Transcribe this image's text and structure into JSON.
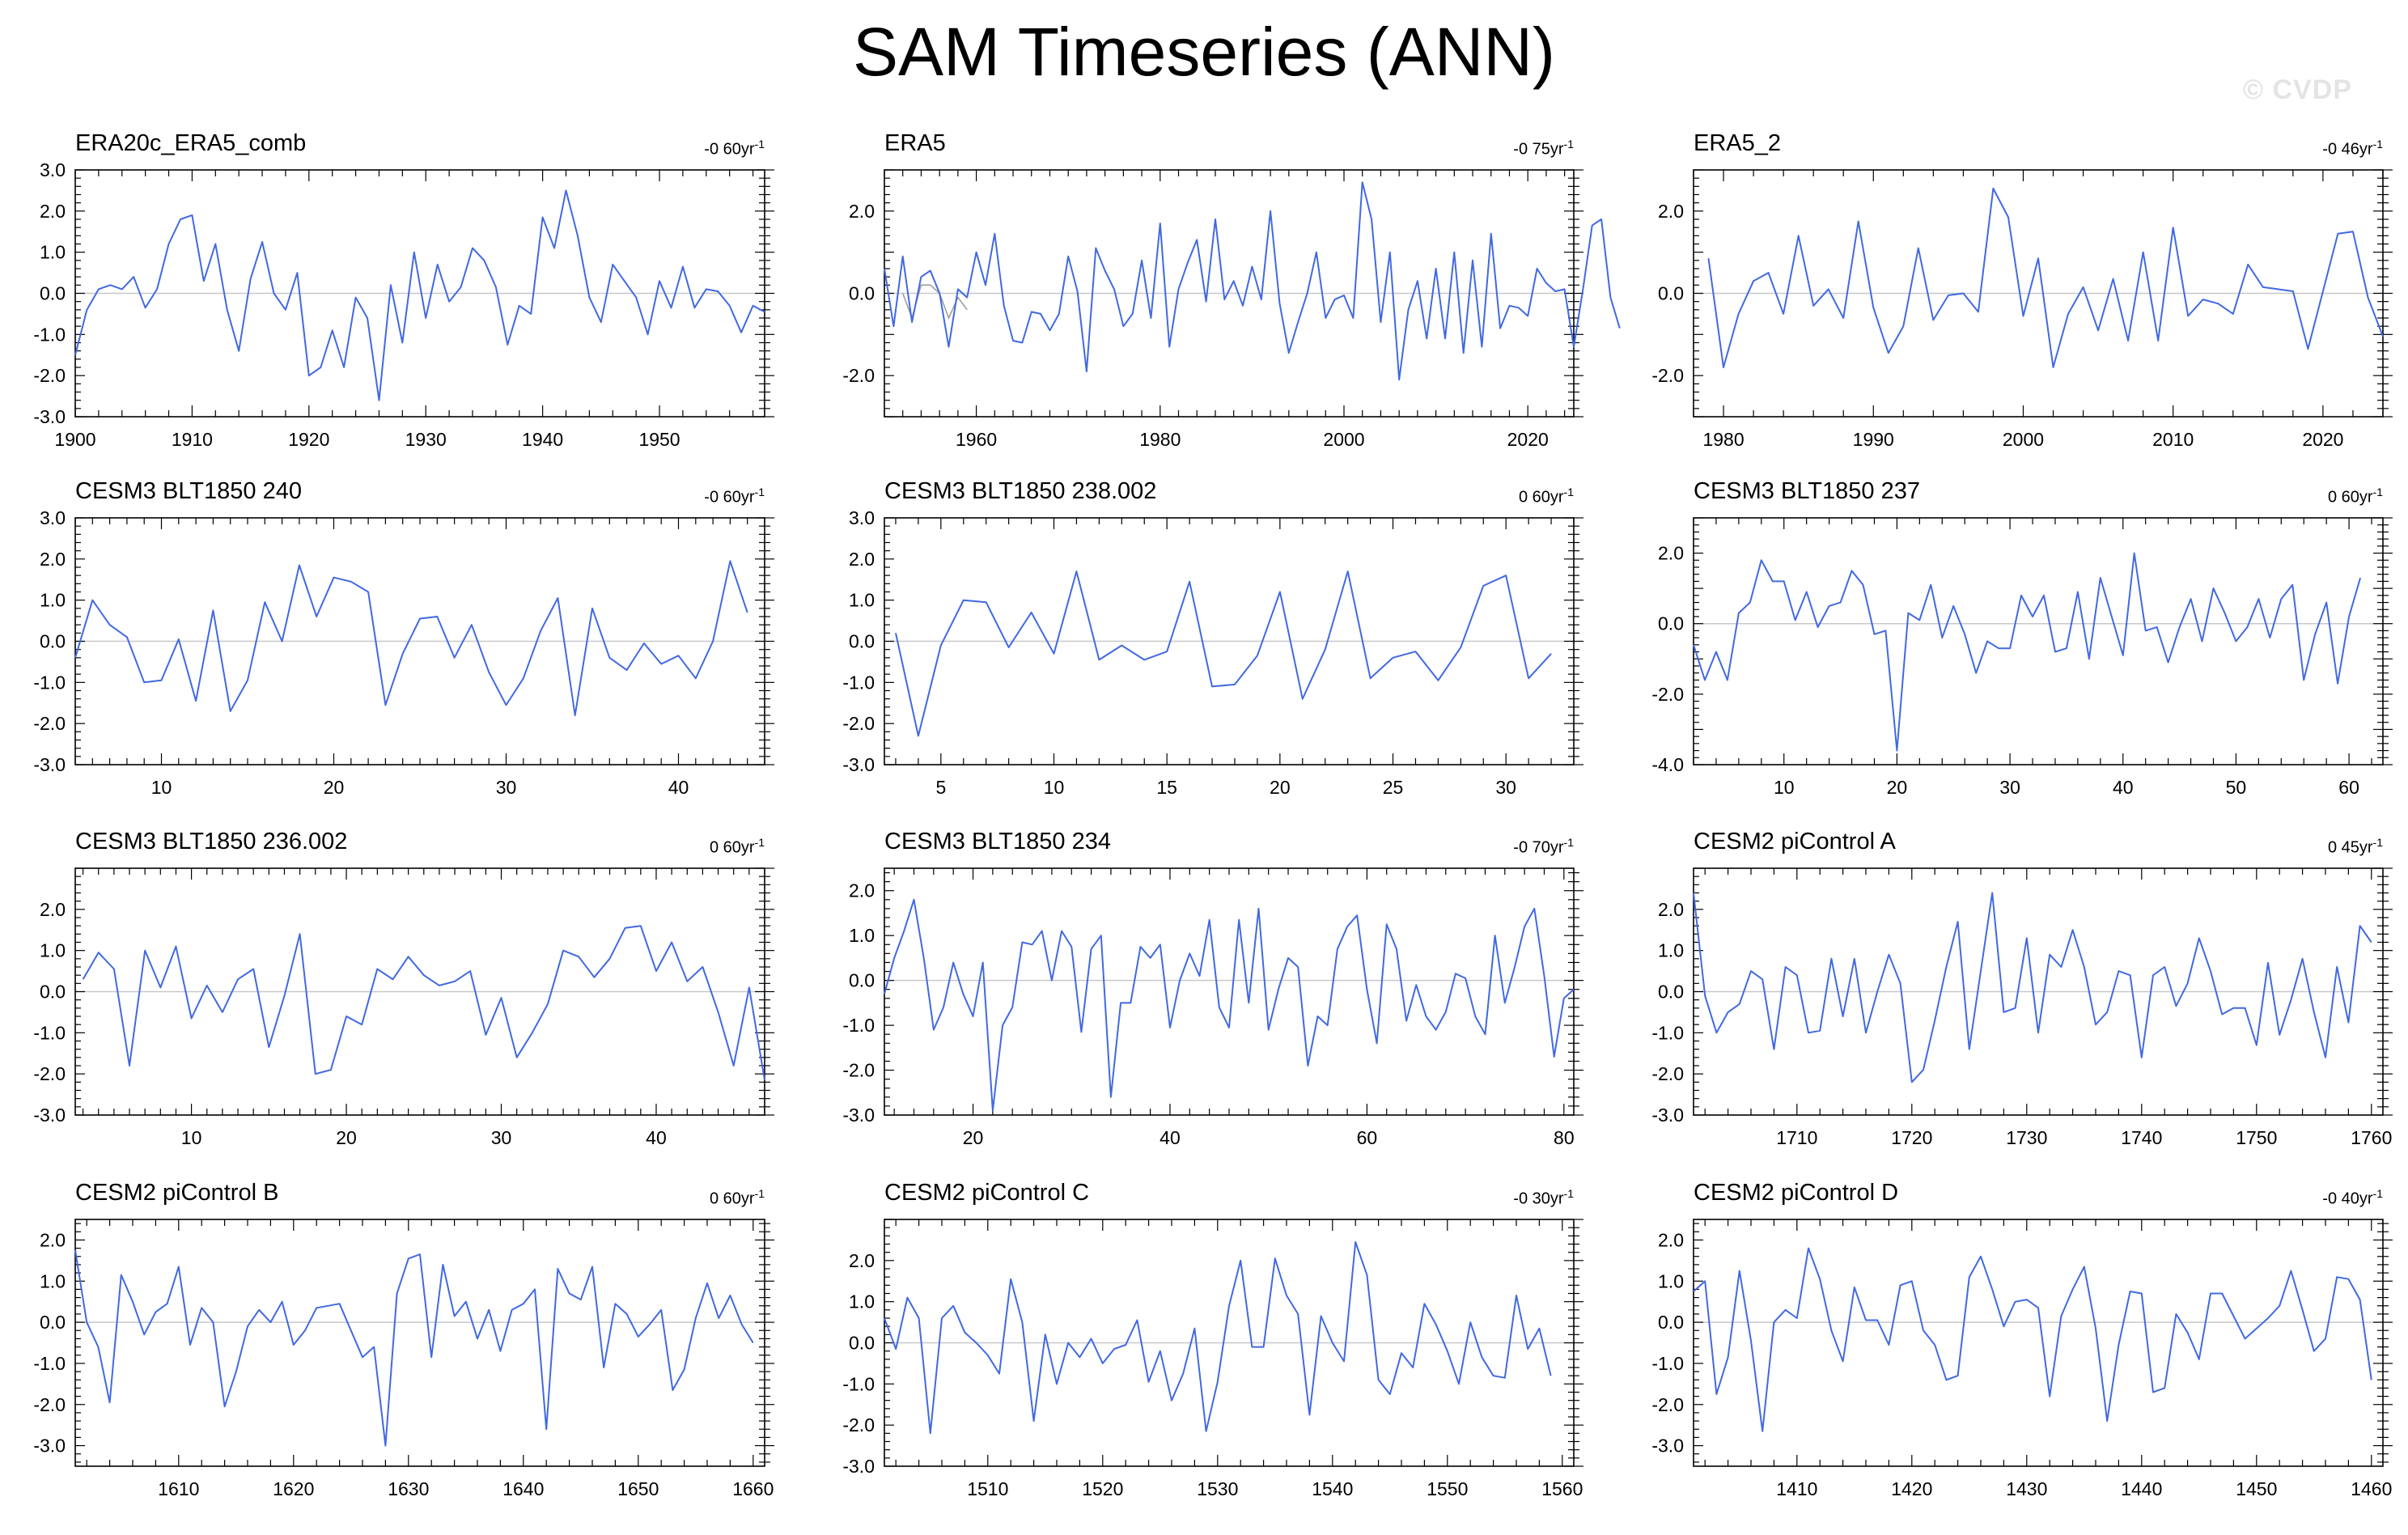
{
  "title": "SAM Timeseries (ANN)",
  "watermark": "© CVDP",
  "colors": {
    "line": "#4169e1",
    "zero": "#c8c8c8",
    "axis": "#000000",
    "extra": "#999999"
  },
  "chart_data": [
    {
      "type": "line",
      "title": "ERA20c_ERA5_comb",
      "trend": "-0 60yr",
      "trend_sup": "-1",
      "xlim": [
        1900,
        1959
      ],
      "ylim": [
        -3.0,
        3.0
      ],
      "xticks": [
        1900,
        1910,
        1920,
        1930,
        1940,
        1950
      ],
      "yticks": [
        "3.0",
        "2.0",
        "1.0",
        "0.0",
        "-1.0",
        "-2.0",
        "-3.0"
      ],
      "x_start": 1900,
      "values": [
        -1.5,
        -0.4,
        0.1,
        0.2,
        0.1,
        0.4,
        -0.35,
        0.1,
        1.2,
        1.8,
        1.9,
        0.3,
        1.2,
        -0.4,
        -1.4,
        0.35,
        1.25,
        0.0,
        -0.4,
        0.5,
        -2.0,
        -1.8,
        -0.9,
        -1.8,
        -0.1,
        -0.6,
        -2.6,
        0.2,
        -1.2,
        1.0,
        -0.6,
        0.7,
        -0.2,
        0.15,
        1.1,
        0.8,
        0.15,
        -1.25,
        -0.3,
        -0.5,
        1.85,
        1.1,
        2.5,
        1.4,
        -0.1,
        -0.7,
        0.7,
        0.3,
        -0.1,
        -1.0,
        0.3,
        -0.35,
        0.65,
        -0.35,
        0.1,
        0.05,
        -0.3,
        -0.95,
        -0.3,
        -0.45
      ]
    },
    {
      "type": "line",
      "title": "ERA5",
      "trend": "-0 75yr",
      "trend_sup": "-1",
      "xlim": [
        1950,
        2025
      ],
      "ylim": [
        -3.0,
        3.0
      ],
      "xticks": [
        1960,
        1980,
        2000,
        2020
      ],
      "yticks": [
        "2.0",
        "0.0",
        "-2.0"
      ],
      "x_start": 1950,
      "values": [
        0.6,
        -0.8,
        0.9,
        -0.7,
        0.4,
        0.55,
        0.0,
        -1.3,
        0.1,
        -0.1,
        1.0,
        0.2,
        1.45,
        -0.3,
        -1.15,
        -1.2,
        -0.45,
        -0.5,
        -0.9,
        -0.5,
        0.9,
        0.05,
        -1.9,
        1.1,
        0.55,
        0.1,
        -0.8,
        -0.5,
        0.8,
        -0.6,
        1.7,
        -1.3,
        0.1,
        0.75,
        1.3,
        -0.2,
        1.8,
        -0.15,
        0.3,
        -0.3,
        0.65,
        -0.15,
        2.0,
        -0.25,
        -1.45,
        -0.7,
        0.0,
        1.0,
        -0.6,
        -0.15,
        -0.05,
        -0.6,
        2.7,
        1.8,
        -0.7,
        1.0,
        -2.1,
        -0.4,
        0.3,
        -1.1,
        0.6,
        -1.1,
        1.0,
        -1.45,
        0.8,
        -1.3,
        1.45,
        -0.85,
        -0.3,
        -0.35,
        -0.55,
        0.6,
        0.25,
        0.05,
        0.1,
        -1.3,
        0.1,
        1.65,
        1.8,
        -0.1,
        -0.85
      ]
    },
    {
      "type": "line",
      "title": "ERA5_2",
      "trend": "-0 46yr",
      "trend_sup": "-1",
      "xlim": [
        1978,
        2024
      ],
      "ylim": [
        -3.0,
        3.0
      ],
      "xticks": [
        1980,
        1990,
        2000,
        2010,
        2020
      ],
      "yticks": [
        "2.0",
        "0.0",
        "-2.0"
      ],
      "x_start": 1979,
      "values": [
        0.85,
        -1.8,
        -0.5,
        0.3,
        0.5,
        -0.5,
        1.4,
        -0.3,
        0.1,
        -0.6,
        1.75,
        -0.35,
        -1.45,
        -0.8,
        1.1,
        -0.65,
        -0.05,
        0.0,
        -0.45,
        2.55,
        1.85,
        -0.55,
        0.85,
        -1.8,
        -0.5,
        0.15,
        -0.9,
        0.35,
        -1.15,
        1.0,
        -1.15,
        1.6,
        -0.55,
        -0.15,
        -0.25,
        -0.5,
        0.7,
        0.15,
        0.1,
        0.05,
        -1.35,
        0.05,
        1.45,
        1.5,
        -0.1,
        -1.05
      ]
    },
    {
      "type": "line",
      "title": "CESM3 BLT1850 240",
      "trend": "-0 60yr",
      "trend_sup": "-1",
      "xlim": [
        5,
        45
      ],
      "ylim": [
        -3.0,
        3.0
      ],
      "xticks": [
        10,
        20,
        30,
        40
      ],
      "yticks": [
        "3.0",
        "2.0",
        "1.0",
        "0.0",
        "-1.0",
        "-2.0",
        "-3.0"
      ],
      "x_start": 5,
      "values": [
        -0.4,
        1.0,
        0.4,
        0.1,
        -1.0,
        -0.95,
        0.05,
        -1.45,
        0.75,
        -1.7,
        -0.95,
        0.95,
        0.0,
        1.85,
        0.6,
        1.55,
        1.45,
        1.2,
        -1.55,
        -0.3,
        0.55,
        0.6,
        -0.4,
        0.4,
        -0.75,
        -1.55,
        -0.9,
        0.25,
        1.05,
        -1.8,
        0.8,
        -0.4,
        -0.7,
        -0.05,
        -0.55,
        -0.35,
        -0.9,
        0.0,
        1.95,
        0.7
      ]
    },
    {
      "type": "line",
      "title": "CESM3 BLT1850 238.002",
      "trend": "0 60yr",
      "trend_sup": "-1",
      "xlim": [
        2.5,
        33
      ],
      "ylim": [
        -3.0,
        3.0
      ],
      "xticks": [
        5,
        10,
        15,
        20,
        25,
        30
      ],
      "yticks": [
        "3.0",
        "2.0",
        "1.0",
        "0.0",
        "-1.0",
        "-2.0",
        "-3.0"
      ],
      "x_start": 3,
      "values": [
        0.2,
        -2.3,
        -0.1,
        1.0,
        0.95,
        -0.15,
        0.7,
        -0.3,
        1.7,
        -0.45,
        -0.1,
        -0.45,
        -0.25,
        1.45,
        -1.1,
        -1.05,
        -0.35,
        1.2,
        -1.4,
        -0.2,
        1.7,
        -0.9,
        -0.4,
        -0.25,
        -0.95,
        -0.15,
        1.35,
        1.6,
        -0.9,
        -0.3
      ]
    },
    {
      "type": "line",
      "title": "CESM3 BLT1850 237",
      "trend": "0 60yr",
      "trend_sup": "-1",
      "xlim": [
        2,
        63
      ],
      "ylim": [
        -4.0,
        3.0
      ],
      "xticks": [
        10,
        20,
        30,
        40,
        50,
        60
      ],
      "yticks": [
        "2.0",
        "0.0",
        "-2.0",
        "-4.0"
      ],
      "x_start": 2,
      "values": [
        -0.6,
        -1.6,
        -0.8,
        -1.6,
        0.3,
        0.6,
        1.8,
        1.2,
        1.2,
        0.1,
        0.9,
        -0.1,
        0.5,
        0.6,
        1.5,
        1.1,
        -0.3,
        -0.2,
        -3.6,
        0.3,
        0.1,
        1.1,
        -0.4,
        0.5,
        -0.3,
        -1.4,
        -0.5,
        -0.7,
        -0.7,
        0.8,
        0.2,
        0.8,
        -0.8,
        -0.7,
        0.9,
        -1.0,
        1.3,
        0.2,
        -0.9,
        2.0,
        -0.2,
        -0.1,
        -1.1,
        -0.1,
        0.7,
        -0.5,
        1.0,
        0.3,
        -0.5,
        -0.1,
        0.7,
        -0.4,
        0.7,
        1.1,
        -1.6,
        -0.3,
        0.6,
        -1.7,
        0.2,
        1.3
      ]
    },
    {
      "type": "line",
      "title": "CESM3 BLT1850 236.002",
      "trend": "0 60yr",
      "trend_sup": "-1",
      "xlim": [
        2.5,
        47
      ],
      "ylim": [
        -3.0,
        3.0
      ],
      "xticks": [
        10,
        20,
        30,
        40
      ],
      "yticks": [
        "2.0",
        "1.0",
        "0.0",
        "-1.0",
        "-2.0",
        "-3.0"
      ],
      "x_start": 3,
      "values": [
        0.3,
        0.95,
        0.55,
        -1.8,
        1.0,
        0.1,
        1.1,
        -0.65,
        0.15,
        -0.5,
        0.3,
        0.55,
        -1.35,
        -0.1,
        1.4,
        -2.0,
        -1.9,
        -0.6,
        -0.8,
        0.55,
        0.3,
        0.85,
        0.4,
        0.15,
        0.25,
        0.5,
        -1.05,
        -0.15,
        -1.6,
        -1.0,
        -0.3,
        1.0,
        0.85,
        0.35,
        0.8,
        1.55,
        1.6,
        0.5,
        1.2,
        0.25,
        0.6,
        -0.5,
        -1.8,
        0.1,
        -2.15
      ]
    },
    {
      "type": "line",
      "title": "CESM3 BLT1850 234",
      "trend": "-0 70yr",
      "trend_sup": "-1",
      "xlim": [
        11,
        81
      ],
      "ylim": [
        -3.0,
        2.5
      ],
      "xticks": [
        20,
        40,
        60,
        80
      ],
      "yticks": [
        "2.0",
        "1.0",
        "0.0",
        "-1.0",
        "-2.0",
        "-3.0"
      ],
      "x_start": 11,
      "values": [
        -0.3,
        0.5,
        1.1,
        1.8,
        0.5,
        -1.1,
        -0.6,
        0.4,
        -0.3,
        -0.8,
        0.4,
        -2.9,
        -1.0,
        -0.6,
        0.85,
        0.8,
        1.1,
        0.0,
        1.1,
        0.75,
        -1.15,
        0.7,
        1.0,
        -2.6,
        -0.5,
        -0.5,
        0.75,
        0.5,
        0.8,
        -1.05,
        0.0,
        0.6,
        0.1,
        1.35,
        -0.6,
        -1.05,
        1.35,
        -0.5,
        1.6,
        -1.1,
        -0.2,
        0.5,
        0.3,
        -1.9,
        -0.8,
        -1.0,
        0.7,
        1.2,
        1.45,
        -0.2,
        -1.4,
        1.25,
        0.7,
        -0.9,
        -0.1,
        -0.8,
        -1.1,
        -0.7,
        0.15,
        0.05,
        -0.8,
        -1.2,
        1.0,
        -0.5,
        0.3,
        1.2,
        1.6,
        0.1,
        -1.7,
        -0.4,
        -0.2
      ]
    },
    {
      "type": "line",
      "title": "CESM2 piControl A",
      "trend": "0 45yr",
      "trend_sup": "-1",
      "xlim": [
        1701,
        1761
      ],
      "ylim": [
        -3.0,
        3.0
      ],
      "xticks": [
        1710,
        1720,
        1730,
        1740,
        1750,
        1760
      ],
      "yticks": [
        "2.0",
        "1.0",
        "0.0",
        "-1.0",
        "-2.0",
        "-3.0"
      ],
      "x_start": 1701,
      "values": [
        2.4,
        -0.1,
        -1.0,
        -0.5,
        -0.3,
        0.5,
        0.3,
        -1.4,
        0.6,
        0.4,
        -1.0,
        -0.95,
        0.8,
        -0.6,
        0.8,
        -1.0,
        0.0,
        0.9,
        0.2,
        -2.2,
        -1.9,
        -0.7,
        0.6,
        1.7,
        -1.4,
        0.5,
        2.4,
        -0.5,
        -0.4,
        1.3,
        -1.0,
        0.9,
        0.6,
        1.5,
        0.6,
        -0.8,
        -0.5,
        0.5,
        0.4,
        -1.6,
        0.4,
        0.6,
        -0.35,
        0.2,
        1.3,
        0.5,
        -0.55,
        -0.4,
        -0.4,
        -1.3,
        0.7,
        -1.05,
        -0.2,
        0.8,
        -0.5,
        -1.6,
        0.6,
        -0.75,
        1.6,
        1.2
      ]
    },
    {
      "type": "line",
      "title": "CESM2 piControl B",
      "trend": "0 60yr",
      "trend_sup": "-1",
      "xlim": [
        1601,
        1661
      ],
      "ylim": [
        -3.5,
        2.5
      ],
      "xticks": [
        1610,
        1620,
        1630,
        1640,
        1650,
        1660
      ],
      "yticks": [
        "2.0",
        "1.0",
        "0.0",
        "-1.0",
        "-2.0",
        "-3.0"
      ],
      "x_start": 1601,
      "values": [
        1.75,
        0.0,
        -0.6,
        -1.95,
        1.15,
        0.5,
        -0.3,
        0.25,
        0.45,
        1.35,
        -0.55,
        0.35,
        0.0,
        -2.05,
        -1.2,
        -0.1,
        0.3,
        0.0,
        0.5,
        -0.55,
        -0.2,
        0.35,
        0.4,
        0.45,
        -0.2,
        -0.85,
        -0.6,
        -3.0,
        0.7,
        1.55,
        1.65,
        -0.85,
        1.4,
        0.15,
        0.5,
        -0.4,
        0.3,
        -0.7,
        0.3,
        0.45,
        0.8,
        -2.6,
        1.3,
        0.7,
        0.55,
        1.35,
        -1.1,
        0.45,
        0.2,
        -0.35,
        -0.05,
        0.3,
        -1.65,
        -1.15,
        0.1,
        0.95,
        0.1,
        0.65,
        -0.05,
        -0.5
      ]
    },
    {
      "type": "line",
      "title": "CESM2 piControl C",
      "trend": "-0 30yr",
      "trend_sup": "-1",
      "xlim": [
        1501,
        1561
      ],
      "ylim": [
        -3.0,
        3.0
      ],
      "xticks": [
        1510,
        1520,
        1530,
        1540,
        1550,
        1560
      ],
      "yticks": [
        "2.0",
        "1.0",
        "0.0",
        "-1.0",
        "-2.0",
        "-3.0"
      ],
      "x_start": 1501,
      "values": [
        0.6,
        -0.15,
        1.1,
        0.6,
        -2.2,
        0.6,
        0.9,
        0.25,
        0.0,
        -0.3,
        -0.75,
        1.55,
        0.5,
        -1.9,
        0.2,
        -1.0,
        0.0,
        -0.35,
        0.1,
        -0.5,
        -0.15,
        -0.05,
        0.55,
        -0.95,
        -0.2,
        -1.4,
        -0.75,
        0.35,
        -2.15,
        -0.95,
        0.9,
        2.0,
        -0.1,
        -0.1,
        2.05,
        1.15,
        0.7,
        -1.75,
        0.65,
        0.0,
        -0.45,
        2.45,
        1.65,
        -0.9,
        -1.25,
        -0.25,
        -0.6,
        0.95,
        0.45,
        -0.2,
        -1.0,
        0.5,
        -0.35,
        -0.8,
        -0.85,
        1.15,
        -0.15,
        0.35,
        -0.8
      ]
    },
    {
      "type": "line",
      "title": "CESM2 piControl D",
      "trend": "-0 40yr",
      "trend_sup": "-1",
      "xlim": [
        1401,
        1461
      ],
      "ylim": [
        -3.5,
        2.5
      ],
      "xticks": [
        1410,
        1420,
        1430,
        1440,
        1450,
        1460
      ],
      "yticks": [
        "2.0",
        "1.0",
        "0.0",
        "-1.0",
        "-2.0",
        "-3.0"
      ],
      "x_start": 1401,
      "values": [
        0.75,
        1.0,
        -1.75,
        -0.85,
        1.25,
        -0.45,
        -2.65,
        0.0,
        0.3,
        0.1,
        1.8,
        1.05,
        -0.2,
        -0.95,
        0.85,
        0.05,
        0.05,
        -0.55,
        0.9,
        1.0,
        -0.2,
        -0.55,
        -1.4,
        -1.3,
        1.1,
        1.6,
        0.8,
        -0.1,
        0.5,
        0.55,
        0.35,
        -1.8,
        0.15,
        0.8,
        1.35,
        -0.15,
        -2.4,
        -0.55,
        0.75,
        0.7,
        -1.7,
        -1.6,
        0.2,
        -0.25,
        -0.9,
        0.7,
        0.7,
        0.15,
        -0.4,
        -0.15,
        0.1,
        0.4,
        1.25,
        0.3,
        -0.7,
        -0.4,
        1.1,
        1.05,
        0.55,
        -1.4
      ]
    }
  ]
}
